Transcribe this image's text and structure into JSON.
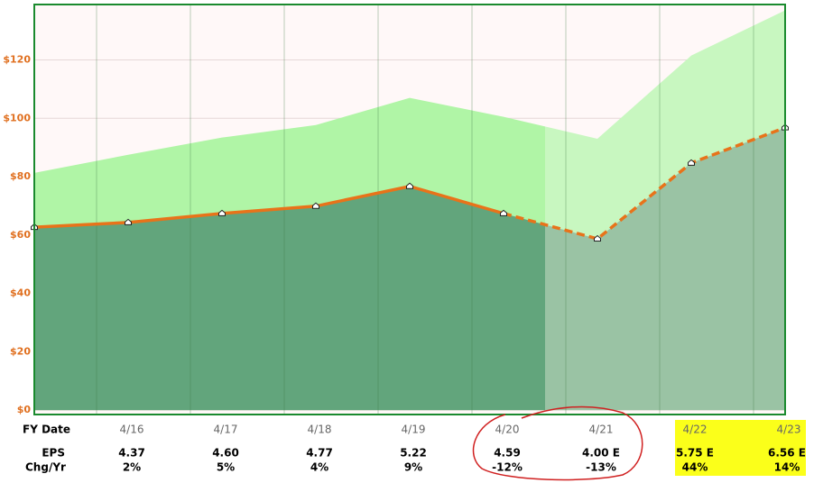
{
  "chart_data": {
    "type": "area-line",
    "categories": [
      null,
      "4/16",
      "4/17",
      "4/18",
      "4/19",
      "4/20",
      "4/21",
      "4/22",
      "4/23"
    ],
    "series": [
      {
        "color": "#e8731a",
        "values": [
          62.7,
          64.3,
          67.4,
          69.9,
          76.7,
          67.4,
          58.7,
          84.7,
          96.8
        ]
      },
      {
        "color": "#b0f5a6",
        "values": [
          81.3,
          87.5,
          93.4,
          97.7,
          107,
          100.5,
          93,
          121.5,
          137
        ]
      }
    ],
    "ylim": [
      -1.5,
      139
    ],
    "yticks": [
      {
        "value": 0,
        "label": "$0"
      },
      {
        "value": 20,
        "label": "$20"
      },
      {
        "value": 40,
        "label": "$40"
      },
      {
        "value": 60,
        "label": "$60"
      },
      {
        "value": 80,
        "label": "$80"
      },
      {
        "value": 100,
        "label": "$100"
      },
      {
        "value": 120,
        "label": "$120"
      }
    ],
    "grid": true
  },
  "table": {
    "row_labels": [
      "FY Date",
      "EPS",
      "Chg/Yr"
    ],
    "eps": {
      "values": [
        4.37,
        4.6,
        4.77,
        5.22,
        4.59,
        4.0,
        5.75,
        6.56
      ],
      "value_labels": [
        "4.37",
        "4.60",
        "4.77",
        "5.22",
        "4.59",
        "4.00 E",
        "5.75 E",
        "6.56 E"
      ]
    },
    "chg": {
      "values": [
        2,
        5,
        4,
        9,
        -12,
        -13,
        44,
        14
      ],
      "value_labels": [
        "2%",
        "5%",
        "4%",
        "9%",
        "-12%",
        "-13%",
        "44%",
        "14%"
      ]
    }
  }
}
